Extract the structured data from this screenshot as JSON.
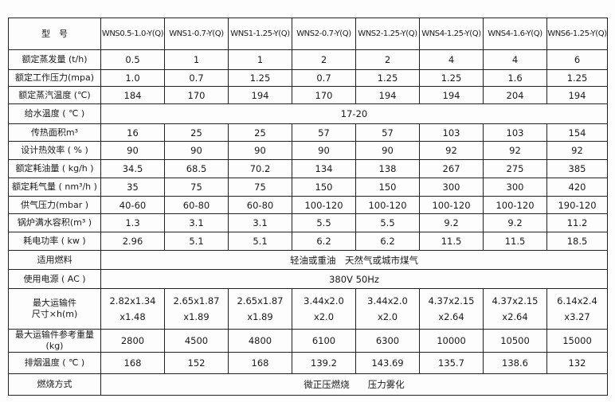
{
  "header": {
    "label": "型　号",
    "models": [
      "WNS0.5-1.0-Y(Q)",
      "WNS1-0.7-Y(Q)",
      "WNS1-1.25-Y(Q)",
      "WNS2-0.7-Y(Q)",
      "WNS2-1.25-Y(Q)",
      "WNS4-1.25-Y(Q)",
      "WNS4-1.6-Y(Q)",
      "WNS6-1.25-Y(Q)"
    ]
  },
  "rows": [
    {
      "label": "额定蒸发量 (t/h)",
      "values": [
        "0.5",
        "1",
        "1",
        "2",
        "2",
        "4",
        "4",
        "6"
      ]
    },
    {
      "label": "额定工作压力(mpa)",
      "values": [
        "1.0",
        "0.7",
        "1.25",
        "0.7",
        "1.25",
        "1.25",
        "1.6",
        "1.25"
      ]
    },
    {
      "label": "额定蒸汽温度 (℃)",
      "values": [
        "184",
        "170",
        "194",
        "170",
        "194",
        "194",
        "204",
        "194"
      ]
    },
    {
      "label": "给水温度 ( ℃ )",
      "span": "17-20"
    },
    {
      "label": "传热面积m³",
      "values": [
        "16",
        "25",
        "25",
        "57",
        "57",
        "103",
        "103",
        "154"
      ]
    },
    {
      "label": "设计热效率 ( % )",
      "values": [
        "90",
        "90",
        "90",
        "90",
        "90",
        "92",
        "92",
        "92"
      ]
    },
    {
      "label": "额定耗油量 ( kg/h )",
      "values": [
        "34.5",
        "68.5",
        "70.2",
        "134",
        "138",
        "267",
        "275",
        "385"
      ]
    },
    {
      "label": "额定耗气量 ( nm³/h )",
      "values": [
        "35",
        "75",
        "75",
        "150",
        "150",
        "300",
        "300",
        "420"
      ]
    },
    {
      "label": "供气压力(mbar )",
      "values": [
        "40-60",
        "60-80",
        "60-80",
        "100-120",
        "100-120",
        "100-120",
        "100-120",
        "190-120"
      ]
    },
    {
      "label": "锅炉满水容积(m³ )",
      "values": [
        "1.3",
        "3.1",
        "3.1",
        "5.5",
        "5.5",
        "9.2",
        "9.2",
        "11.2"
      ]
    },
    {
      "label": "耗电功率 ( kw )",
      "values": [
        "2.96",
        "5.1",
        "5.1",
        "6.2",
        "6.2",
        "11.5",
        "11.5",
        "18.5"
      ]
    },
    {
      "label": "适用燃料",
      "span": "轻油或重油　天然气或城市煤气"
    },
    {
      "label": "使用电源 ( AC )",
      "span": "380V 50Hz"
    },
    {
      "label": "最大运输件\n尺寸×h(m)",
      "values": [
        "2.82x1.34\nx1.48",
        "2.65x1.87\nx1.89",
        "2.65x1.87\nx1.89",
        "3.44x2.0\nx2.0",
        "3.44x2.0\nx2.0",
        "4.37x2.15\nx2.64",
        "4.37x2.15\nx2.64",
        "6.14x2.4\nx3.27"
      ],
      "tall": true
    },
    {
      "label": "最大运输件参考重量 (kg)",
      "values": [
        "2800",
        "4500",
        "4800",
        "6100",
        "6300",
        "10000",
        "10500",
        "15000"
      ]
    },
    {
      "label": "排烟温度 ( ℃ )",
      "values": [
        "168",
        "152",
        "168",
        "139.2",
        "143.69",
        "135.7",
        "138.6",
        "132"
      ]
    },
    {
      "label": "燃烧方式",
      "span": "微正压燃烧　　压力雾化"
    }
  ]
}
